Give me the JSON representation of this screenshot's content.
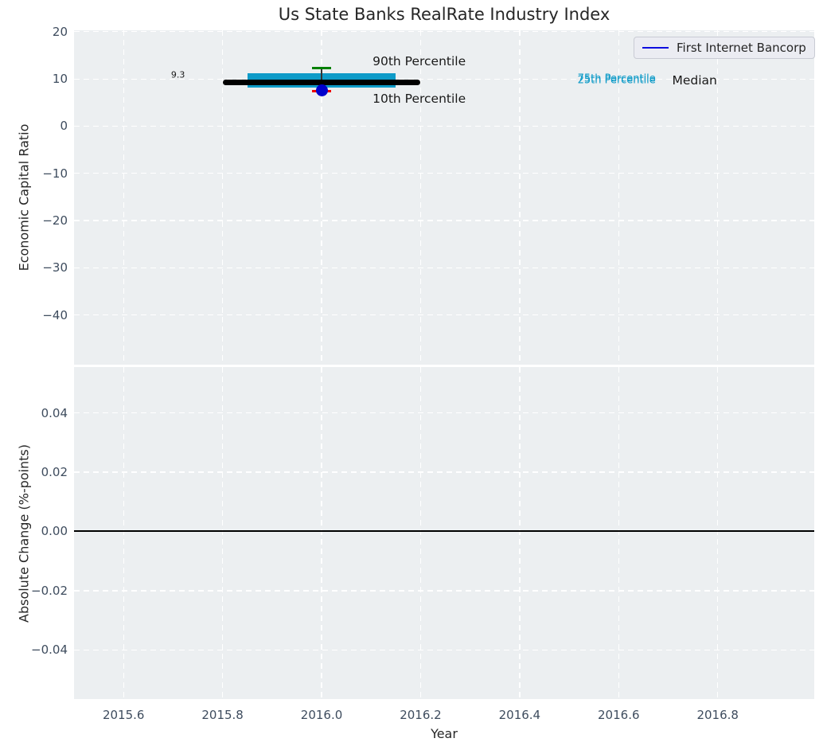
{
  "title": "Us State Banks RealRate Industry Index",
  "legend": {
    "label": "First Internet Bancorp",
    "line_color": "#0d0de0"
  },
  "colors": {
    "axes_background": "#eceff1",
    "grid": "#ffffff",
    "tick_text": "#3e4c5e",
    "text": "#262626",
    "iqr_box": "#0e9bc8",
    "median_line": "#000000",
    "p90_cap": "#008000",
    "p10_cap": "#ed0000",
    "company_dot": "#0000cd",
    "whisker": "#333333",
    "zero_line": "#000000"
  },
  "x_axis": {
    "label": "Year",
    "lim": [
      2015.5,
      2016.995
    ],
    "ticks": [
      {
        "value": 2015.6,
        "label": "2015.6"
      },
      {
        "value": 2015.8,
        "label": "2015.8"
      },
      {
        "value": 2016.0,
        "label": "2016.0"
      },
      {
        "value": 2016.2,
        "label": "2016.2"
      },
      {
        "value": 2016.4,
        "label": "2016.4"
      },
      {
        "value": 2016.6,
        "label": "2016.6"
      },
      {
        "value": 2016.8,
        "label": "2016.8"
      }
    ]
  },
  "top_plot": {
    "ylabel": "Economic Capital Ratio",
    "ylim": [
      -50.5,
      20.3
    ],
    "yticks": [
      {
        "value": 20,
        "label": "20"
      },
      {
        "value": 10,
        "label": "10"
      },
      {
        "value": 0,
        "label": "0"
      },
      {
        "value": -10,
        "label": "−10"
      },
      {
        "value": -20,
        "label": "−20"
      },
      {
        "value": -30,
        "label": "−30"
      },
      {
        "value": -40,
        "label": "−40"
      }
    ]
  },
  "bottom_plot": {
    "ylabel": "Absolute Change (%-points)",
    "ylim": [
      -0.0566,
      0.0555
    ],
    "yticks": [
      {
        "value": 0.04,
        "label": "0.04"
      },
      {
        "value": 0.02,
        "label": "0.02"
      },
      {
        "value": 0.0,
        "label": "0.00"
      },
      {
        "value": -0.02,
        "label": "−0.02"
      },
      {
        "value": -0.04,
        "label": "−0.04"
      }
    ],
    "zero_line_value": 0.0
  },
  "chart_data": {
    "type": "box",
    "title": "Us State Banks RealRate Industry Index",
    "xlabel": "Year",
    "x": 2016.0,
    "series_name": "First Internet Bancorp",
    "percentiles": {
      "p90": 12.3,
      "p75": 11.2,
      "median": 9.3,
      "p25": 8.1,
      "p10": 7.4
    },
    "median_value_label": "9.3",
    "company_value": 7.5,
    "median_span_years": [
      2015.8,
      2016.2
    ],
    "box_span_years": [
      2015.85,
      2016.15
    ],
    "cap_span_years": [
      2015.98,
      2016.02
    ],
    "legend_position": "upper right",
    "grid": "dashed-white",
    "annotations": [
      {
        "text": "9.3",
        "x": 2015.71,
        "y": 10.8,
        "anchor": "center",
        "color": "#1a1a1a",
        "size": 11
      },
      {
        "text": "90th Percentile",
        "x": 2016.103,
        "y": 13.7,
        "anchor": "left",
        "color": "#1a1a1a",
        "size": 15.5
      },
      {
        "text": "10th Percentile",
        "x": 2016.103,
        "y": 5.85,
        "anchor": "left",
        "color": "#1a1a1a",
        "size": 15.5
      },
      {
        "text": "75th Percentile",
        "x": 2016.517,
        "y": 9.95,
        "anchor": "left",
        "color": "#0e9bc8",
        "size": 13
      },
      {
        "text": "25th Percentile",
        "x": 2016.517,
        "y": 9.6,
        "anchor": "left",
        "color": "#0e9bc8",
        "size": 13
      },
      {
        "text": "Median",
        "x": 2016.708,
        "y": 9.7,
        "anchor": "left",
        "color": "#1a1a1a",
        "size": 15.5
      }
    ]
  }
}
